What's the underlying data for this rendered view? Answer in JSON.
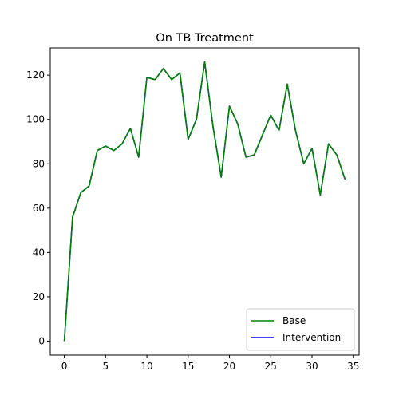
{
  "chart_data": {
    "type": "line",
    "title": "On TB Treatment",
    "xlabel": "",
    "ylabel": "",
    "xlim": [
      -1.7,
      35.7
    ],
    "ylim": [
      -6.3,
      132.3
    ],
    "xticks": [
      0,
      5,
      10,
      15,
      20,
      25,
      30,
      35
    ],
    "yticks": [
      0,
      20,
      40,
      60,
      80,
      100,
      120
    ],
    "grid": false,
    "legend_position": "lower-right",
    "x": [
      0,
      1,
      2,
      3,
      4,
      5,
      6,
      7,
      8,
      9,
      10,
      11,
      12,
      13,
      14,
      15,
      16,
      17,
      18,
      19,
      20,
      21,
      22,
      23,
      24,
      25,
      26,
      27,
      28,
      29,
      30,
      31,
      32,
      33,
      34
    ],
    "series": [
      {
        "name": "Base",
        "color": "#008000",
        "values": [
          0,
          56,
          67,
          70,
          86,
          88,
          86,
          89,
          96,
          83,
          119,
          118,
          123,
          118,
          121,
          91,
          100,
          126,
          97,
          74,
          106,
          98,
          83,
          84,
          93,
          102,
          95,
          116,
          95,
          80,
          87,
          66,
          89,
          84,
          73
        ]
      },
      {
        "name": "Intervention",
        "color": "#0000ff",
        "values": [
          0,
          56,
          67,
          70,
          86,
          88,
          86,
          89,
          96,
          83,
          119,
          118,
          123,
          118,
          121,
          91,
          100,
          126,
          97,
          74,
          106,
          98,
          83,
          84,
          93,
          102,
          95,
          116,
          95,
          80,
          87,
          66,
          89,
          84,
          73
        ]
      }
    ]
  }
}
